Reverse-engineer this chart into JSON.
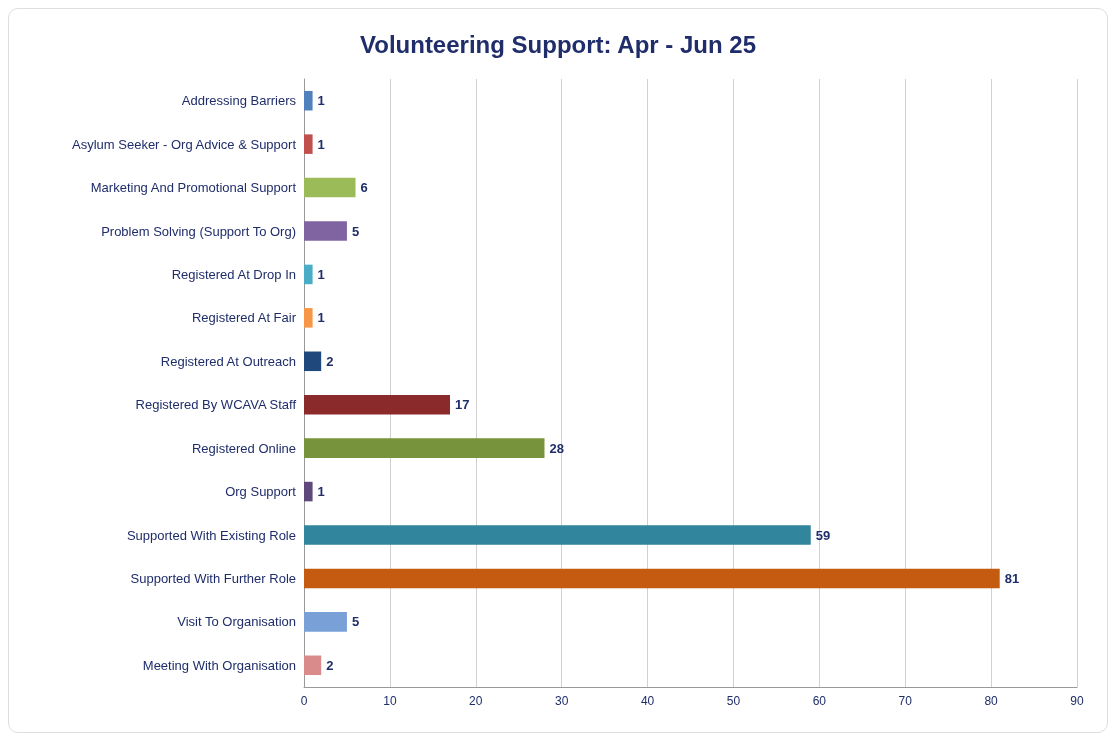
{
  "chart_data": {
    "type": "bar",
    "orientation": "horizontal",
    "title": "Volunteering Support: Apr - Jun 25",
    "categories": [
      "Addressing Barriers",
      "Asylum Seeker - Org Advice & Support",
      "Marketing And Promotional Support",
      "Problem Solving (Support To Org)",
      "Registered At Drop In",
      "Registered At Fair",
      "Registered At Outreach",
      "Registered By WCAVA Staff",
      "Registered Online",
      "Org Support",
      "Supported With Existing Role",
      "Supported With Further Role",
      "Visit To Organisation",
      "Meeting With Organisation"
    ],
    "values": [
      1,
      1,
      6,
      5,
      1,
      1,
      2,
      17,
      28,
      1,
      59,
      81,
      5,
      2
    ],
    "colors": [
      "#4f81bd",
      "#c0504d",
      "#9bbb59",
      "#8064a2",
      "#4bacc6",
      "#f79646",
      "#1f497d",
      "#8b2a2a",
      "#77933c",
      "#5f497a",
      "#31859c",
      "#c55a11",
      "#7aa0d8",
      "#d98a8a"
    ],
    "xlim": [
      0,
      90
    ],
    "xticks": [
      0,
      10,
      20,
      30,
      40,
      50,
      60,
      70,
      80,
      90
    ],
    "grid": "x",
    "data_labels": true
  }
}
